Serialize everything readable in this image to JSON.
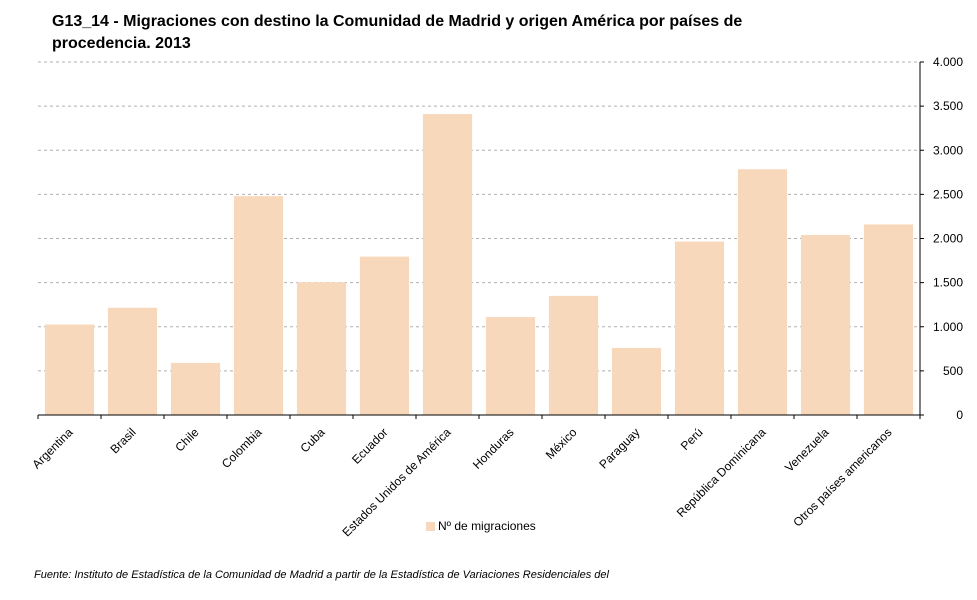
{
  "chart_data": {
    "type": "bar",
    "title": "G13_14 - Migraciones con destino la Comunidad de Madrid y origen América por países de procedencia. 2013",
    "categories": [
      "Argentina",
      "Brasil",
      "Chile",
      "Colombia",
      "Cuba",
      "Ecuador",
      "Estados Unidos de América",
      "Honduras",
      "México",
      "Paraguay",
      "Perú",
      "República Dominicana",
      "Venezuela",
      "Otros países americanos"
    ],
    "series": [
      {
        "name": "Nº de migraciones",
        "values": [
          1025,
          1215,
          590,
          2480,
          1505,
          1795,
          3410,
          1110,
          1350,
          760,
          1965,
          2785,
          2040,
          2160
        ]
      }
    ],
    "ylim": [
      0,
      4000
    ],
    "yticks": [
      0,
      500,
      1000,
      1500,
      2000,
      2500,
      3000,
      3500,
      4000
    ],
    "ytick_labels": [
      "0",
      "500",
      "1.000",
      "1.500",
      "2.000",
      "2.500",
      "3.000",
      "3.500",
      "4.000"
    ],
    "xlabel": "",
    "ylabel": "",
    "grid": true,
    "legend_position": "bottom",
    "bar_color": "#f8d8bb"
  },
  "source": "Fuente: Instituto de Estadística de la Comunidad de Madrid a partir de la Estadística de Variaciones Residenciales del"
}
